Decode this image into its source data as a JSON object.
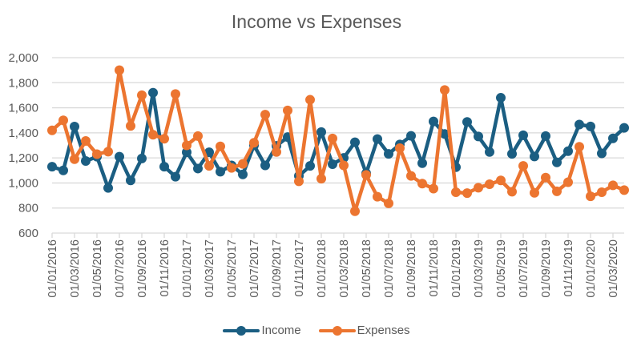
{
  "chart_data": {
    "type": "line",
    "title": "Income vs Expenses",
    "xlabel": "",
    "ylabel": "",
    "ylim": [
      600,
      2000
    ],
    "yticks": [
      "600",
      "800",
      "1,000",
      "1,200",
      "1,400",
      "1,600",
      "1,800",
      "2,000"
    ],
    "ytick_values": [
      600,
      800,
      1000,
      1200,
      1400,
      1600,
      1800,
      2000
    ],
    "grid": true,
    "legend_position": "bottom",
    "x": [
      "01/01/2016",
      "01/02/2016",
      "01/03/2016",
      "01/04/2016",
      "01/05/2016",
      "01/06/2016",
      "01/07/2016",
      "01/08/2016",
      "01/09/2016",
      "01/10/2016",
      "01/11/2016",
      "01/12/2016",
      "01/01/2017",
      "01/02/2017",
      "01/03/2017",
      "01/04/2017",
      "01/05/2017",
      "01/06/2017",
      "01/07/2017",
      "01/08/2017",
      "01/09/2017",
      "01/10/2017",
      "01/11/2017",
      "01/12/2017",
      "01/01/2018",
      "01/02/2018",
      "01/03/2018",
      "01/04/2018",
      "01/05/2018",
      "01/06/2018",
      "01/07/2018",
      "01/08/2018",
      "01/09/2018",
      "01/10/2018",
      "01/11/2018",
      "01/12/2018",
      "01/01/2019",
      "01/02/2019",
      "01/03/2019",
      "01/04/2019",
      "01/05/2019",
      "01/06/2019",
      "01/07/2019",
      "01/08/2019",
      "01/09/2019",
      "01/10/2019",
      "01/11/2019",
      "01/12/2019",
      "01/01/2020",
      "01/02/2020",
      "01/03/2020",
      "01/04/2020"
    ],
    "xtick_labels": [
      "01/01/2016",
      "01/03/2016",
      "01/05/2016",
      "01/07/2016",
      "01/09/2016",
      "01/11/2016",
      "01/01/2017",
      "01/03/2017",
      "01/05/2017",
      "01/07/2017",
      "01/09/2017",
      "01/11/2017",
      "01/01/2018",
      "01/03/2018",
      "01/05/2018",
      "01/07/2018",
      "01/09/2018",
      "01/11/2018",
      "01/01/2019",
      "01/03/2019",
      "01/05/2019",
      "01/07/2019",
      "01/09/2019",
      "01/11/2019",
      "01/01/2020",
      "01/03/2020"
    ],
    "series": [
      {
        "name": "Income",
        "color": "#1b5e82",
        "values": [
          1130,
          1100,
          1450,
          1175,
          1210,
          960,
          1210,
          1020,
          1195,
          1720,
          1130,
          1050,
          1245,
          1115,
          1245,
          1090,
          1140,
          1068,
          1300,
          1140,
          1296,
          1366,
          1056,
          1136,
          1406,
          1150,
          1200,
          1325,
          1077,
          1350,
          1232,
          1307,
          1376,
          1158,
          1491,
          1391,
          1126,
          1487,
          1371,
          1247,
          1680,
          1232,
          1381,
          1211,
          1374,
          1164,
          1254,
          1466,
          1451,
          1236,
          1356,
          1440
        ]
      },
      {
        "name": "Expenses",
        "color": "#ec7530",
        "values": [
          1420,
          1500,
          1190,
          1335,
          1230,
          1250,
          1900,
          1455,
          1700,
          1385,
          1353,
          1710,
          1300,
          1374,
          1136,
          1292,
          1120,
          1152,
          1321,
          1545,
          1247,
          1579,
          1013,
          1664,
          1034,
          1355,
          1140,
          774,
          1064,
          890,
          837,
          1278,
          1056,
          995,
          955,
          1742,
          926,
          919,
          962,
          990,
          1020,
          930,
          1136,
          921,
          1043,
          933,
          1006,
          1289,
          893,
          926,
          981,
          943
        ]
      }
    ]
  },
  "legend": {
    "items": [
      {
        "label": "Income",
        "color": "#1b5e82"
      },
      {
        "label": "Expenses",
        "color": "#ec7530"
      }
    ]
  },
  "style": {
    "gridline_color": "#d9d9d9",
    "text_color": "#595959"
  }
}
